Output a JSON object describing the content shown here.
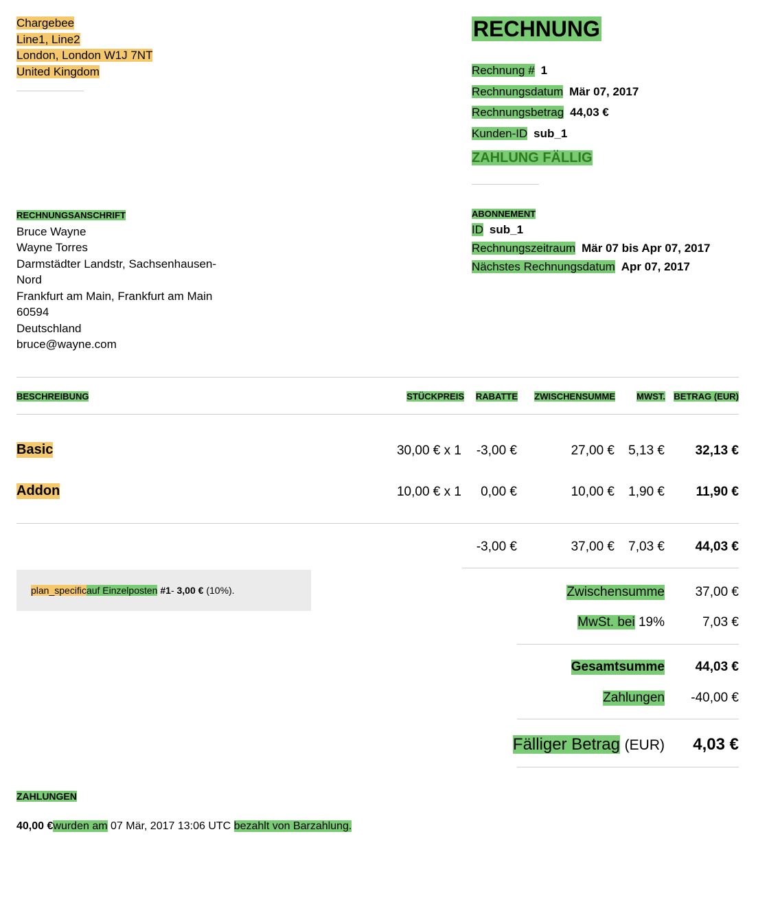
{
  "seller": {
    "lines": [
      "Chargebee",
      "Line1, Line2",
      "London, London W1J 7NT",
      "United Kingdom"
    ]
  },
  "invoice": {
    "title": "RECHNUNG",
    "fields": [
      {
        "label": "Rechnung #",
        "value": "1"
      },
      {
        "label": "Rechnungsdatum",
        "value": "Mär 07, 2017"
      },
      {
        "label": "Rechnungsbetrag",
        "value": "44,03 €"
      },
      {
        "label": "Kunden-ID",
        "value": "sub_1"
      }
    ],
    "status": "ZAHLUNG FÄLLIG"
  },
  "billing": {
    "heading": "RECHNUNGSANSCHRIFT",
    "lines": [
      "Bruce Wayne",
      "Wayne Torres",
      "Darmstädter Landstr, Sachsenhausen-",
      "Nord",
      "Frankfurt am Main, Frankfurt am Main",
      "60594",
      "Deutschland",
      "bruce@wayne.com"
    ]
  },
  "subscription": {
    "heading": "ABONNEMENT",
    "fields": [
      {
        "label": "ID",
        "value": "sub_1"
      },
      {
        "label": "Rechnungszeitraum",
        "value": "Mär 07 bis Apr 07, 2017"
      },
      {
        "label": "Nächstes Rechnungsdatum",
        "value": "Apr 07, 2017"
      }
    ]
  },
  "table": {
    "headers": [
      "BESCHREIBUNG",
      "STÜCKPREIS",
      "RABATTE",
      "ZWISCHENSUMME",
      "MWST.",
      "BETRAG (EUR)"
    ],
    "rows": [
      {
        "desc": "Basic",
        "unit": "30,00 € x 1",
        "discount": "-3,00 €",
        "subtotal": "27,00 €",
        "tax": "5,13 €",
        "amount": "32,13 €"
      },
      {
        "desc": "Addon",
        "unit": "10,00 € x 1",
        "discount": "0,00 €",
        "subtotal": "10,00 €",
        "tax": "1,90 €",
        "amount": "11,90 €"
      }
    ],
    "totals_row": {
      "discount": "-3,00 €",
      "subtotal": "37,00 €",
      "tax": "7,03 €",
      "amount": "44,03 €"
    }
  },
  "discount_note": {
    "code": "plan_specific",
    "text": "auf Einzelposten",
    "item": "#1",
    "dash": "- ",
    "amount": "3,00 €",
    "percent": "(10%)."
  },
  "summary": {
    "subtotal_label": "Zwischensumme",
    "subtotal_value": "37,00 €",
    "tax_label": "MwSt. bei",
    "tax_rate": "19%",
    "tax_value": "7,03 €",
    "total_label": "Gesamtsumme",
    "total_value": "44,03 €",
    "payments_label": "Zahlungen",
    "payments_value": "-40,00 €",
    "due_label": "Fälliger Betrag",
    "due_currency": "(EUR)",
    "due_value": "4,03 €"
  },
  "payments": {
    "heading": "ZAHLUNGEN",
    "amount": "40,00 €",
    "text1": "wurden am",
    "date": "07 Mär, 2017 13:06 UTC",
    "text2": "bezahlt von Barzahlung."
  },
  "colors": {
    "orange_highlight": "#f5c96b",
    "green_highlight": "#79cc74",
    "status_text": "#2f7a1e",
    "note_bg": "#ebebeb"
  }
}
